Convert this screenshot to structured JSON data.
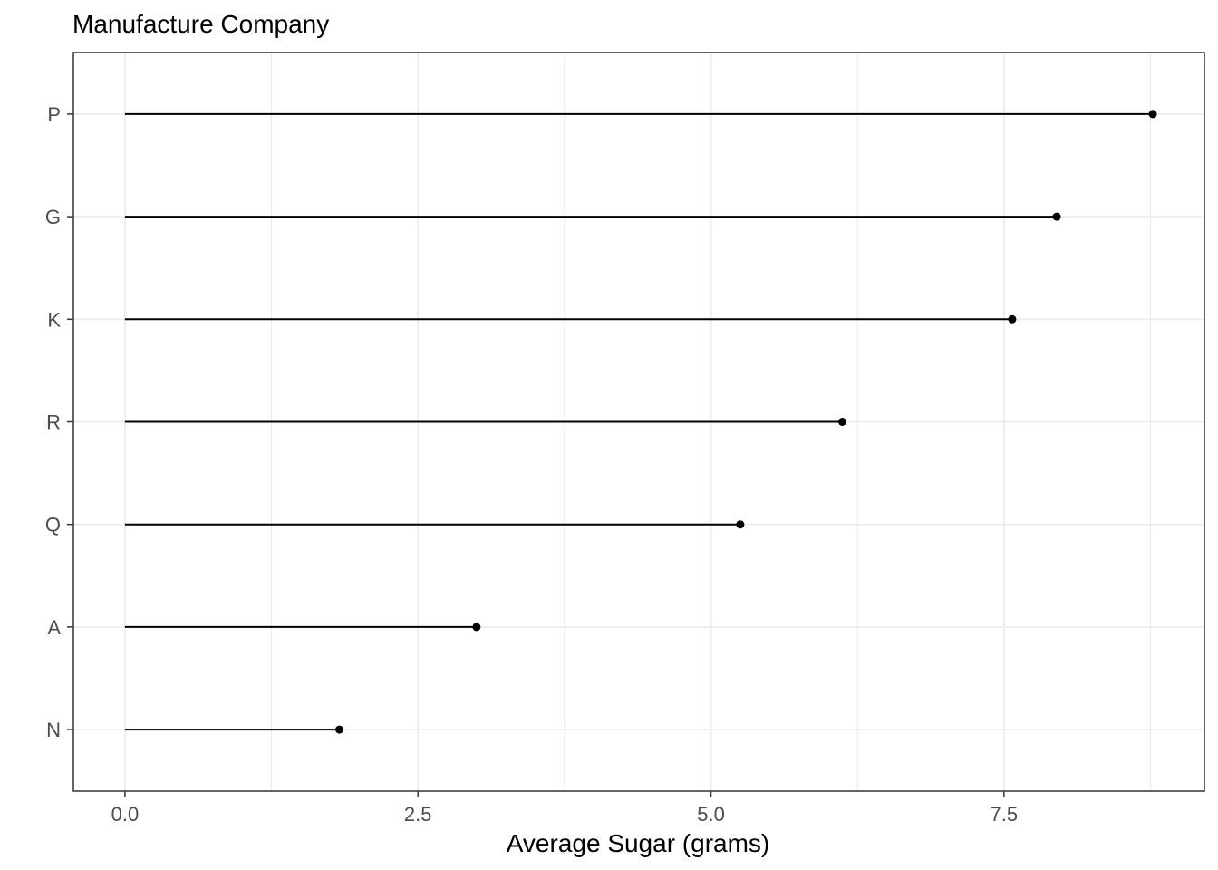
{
  "chart_data": {
    "type": "lollipop",
    "title": "Manufacture Company",
    "xlabel": "Average Sugar (grams)",
    "ylabel": "",
    "categories": [
      "P",
      "G",
      "K",
      "R",
      "Q",
      "A",
      "N"
    ],
    "values": [
      8.77,
      7.95,
      7.57,
      6.12,
      5.25,
      3.0,
      1.83
    ],
    "xlim": [
      -0.44,
      9.21
    ],
    "x_ticks": [
      "0.0",
      "2.5",
      "5.0",
      "7.5"
    ],
    "x_tick_values": [
      0,
      2.5,
      5.0,
      7.5
    ],
    "x_minor_tick_values": [
      1.25,
      3.75,
      6.25,
      8.75
    ],
    "grid": true,
    "legend": "none",
    "colors": {
      "mark": "#000000",
      "grid": "#ebebeb",
      "panel_border": "#333333",
      "tick_label": "#4d4d4d"
    }
  }
}
